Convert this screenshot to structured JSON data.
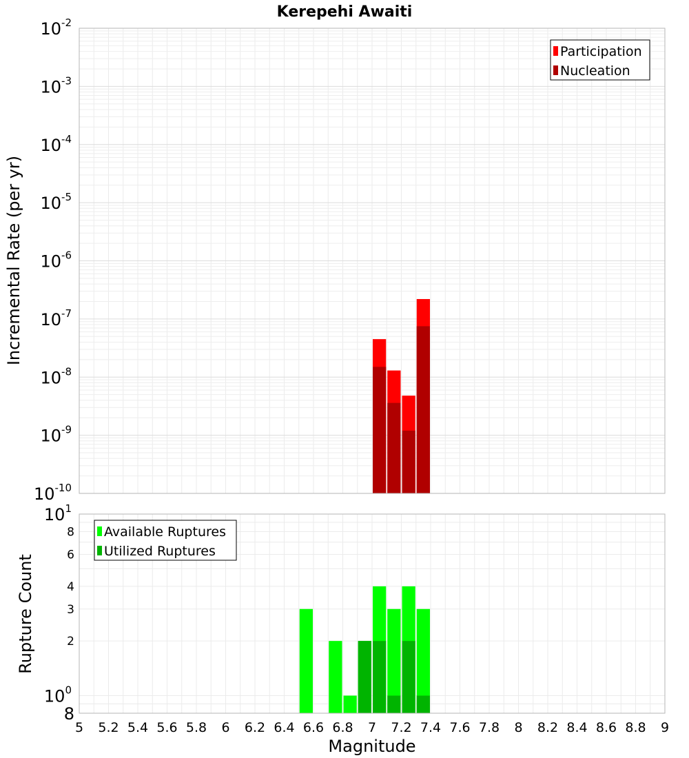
{
  "chart_data": {
    "type": "bar",
    "title": "Kerepehi Awaiti",
    "xlabel": "Magnitude",
    "xlim": [
      5,
      9
    ],
    "x_ticks": [
      "5",
      "5.2",
      "5.4",
      "5.6",
      "5.8",
      "6",
      "6.2",
      "6.4",
      "6.6",
      "6.8",
      "7",
      "7.2",
      "7.4",
      "7.6",
      "7.8",
      "8",
      "8.2",
      "8.4",
      "8.6",
      "8.8",
      "9"
    ],
    "bin_width": 0.1,
    "panels": [
      {
        "ylabel": "Incremental Rate (per yr)",
        "yscale": "log",
        "ylim": [
          1e-10,
          0.01
        ],
        "y_tick_labels": [
          {
            "base": "10",
            "exp": "-2"
          },
          {
            "base": "10",
            "exp": "-3"
          },
          {
            "base": "10",
            "exp": "-4"
          },
          {
            "base": "10",
            "exp": "-5"
          },
          {
            "base": "10",
            "exp": "-6"
          },
          {
            "base": "10",
            "exp": "-7"
          },
          {
            "base": "10",
            "exp": "-8"
          },
          {
            "base": "10",
            "exp": "-9"
          },
          {
            "base": "10",
            "exp": "-10"
          }
        ],
        "legend_position": "top-right",
        "grid": true,
        "series": [
          {
            "name": "Participation",
            "color": "#ff0000",
            "x": [
              7.05,
              7.15,
              7.25,
              7.35
            ],
            "values": [
              4.5e-08,
              1.3e-08,
              4.8e-09,
              2.2e-07
            ]
          },
          {
            "name": "Nucleation",
            "color": "#b00000",
            "x": [
              7.05,
              7.15,
              7.25,
              7.35
            ],
            "values": [
              1.5e-08,
              3.6e-09,
              1.2e-09,
              7.5e-08
            ]
          }
        ]
      },
      {
        "ylabel": "Rupture Count",
        "yscale": "log",
        "ylim": [
          0.8,
          10
        ],
        "y_tick_labels": [
          {
            "base": "10",
            "exp": "1",
            "value": 10,
            "big": true
          },
          {
            "base": "8",
            "exp": "",
            "value": 8,
            "big": false
          },
          {
            "base": "6",
            "exp": "",
            "value": 6,
            "big": false
          },
          {
            "base": "4",
            "exp": "",
            "value": 4,
            "big": false
          },
          {
            "base": "3",
            "exp": "",
            "value": 3,
            "big": false
          },
          {
            "base": "2",
            "exp": "",
            "value": 2,
            "big": false
          },
          {
            "base": "10",
            "exp": "0",
            "value": 1,
            "big": true
          },
          {
            "base": "8",
            "exp": "",
            "value": 0.8,
            "big": true
          }
        ],
        "legend_position": "top-left",
        "grid": true,
        "series": [
          {
            "name": "Available Ruptures",
            "color": "#00ff00",
            "x": [
              6.55,
              6.75,
              6.85,
              6.95,
              7.05,
              7.15,
              7.25,
              7.35
            ],
            "values": [
              3,
              2,
              1,
              2,
              4,
              3,
              4,
              3
            ]
          },
          {
            "name": "Utilized Ruptures",
            "color": "#00b400",
            "x": [
              6.95,
              7.05,
              7.15,
              7.25,
              7.35
            ],
            "values": [
              2,
              2,
              1,
              2,
              1
            ]
          }
        ]
      }
    ]
  }
}
